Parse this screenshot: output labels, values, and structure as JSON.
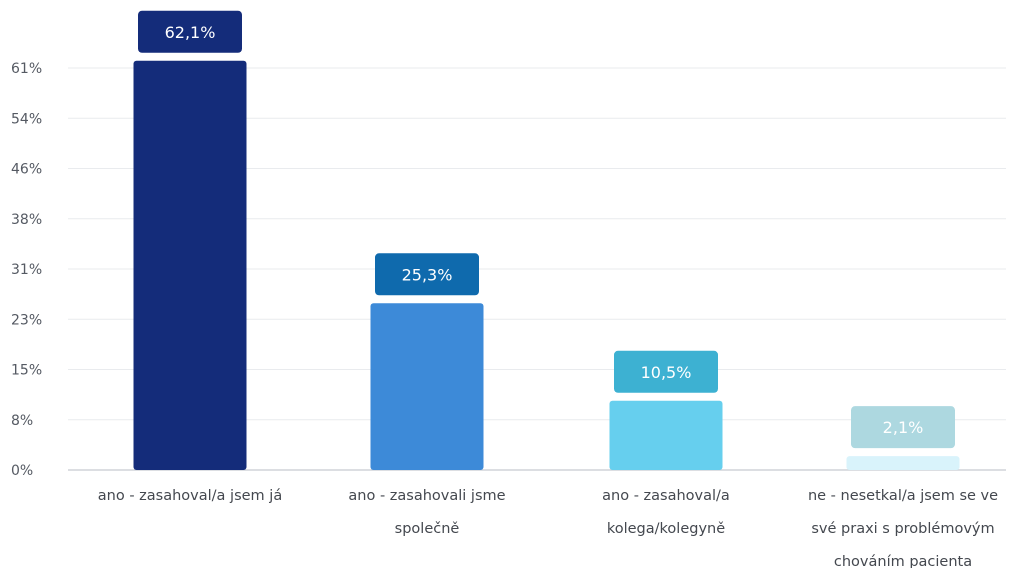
{
  "chart_data": {
    "type": "bar",
    "categories": [
      [
        "ano - zasahoval/a jsem já"
      ],
      [
        "ano - zasahovali jsme",
        "společně"
      ],
      [
        "ano - zasahoval/a",
        "kolega/kolegyně"
      ],
      [
        "ne - nesetkal/a jsem se ve",
        "své praxi s problémovým",
        "chováním pacienta"
      ]
    ],
    "values": [
      62.1,
      25.3,
      10.5,
      2.1
    ],
    "data_labels": [
      "62,1%",
      "25,3%",
      "10,5%",
      "2,1%"
    ],
    "y_ticks": [
      "0%",
      "8%",
      "15%",
      "23%",
      "31%",
      "38%",
      "46%",
      "54%",
      "61%"
    ],
    "ylim": [
      0,
      61
    ],
    "grid": true,
    "legend": "none",
    "bar_colors": [
      "#142c7a",
      "#3d8ad8",
      "#66cfee",
      "#d9f3fb"
    ],
    "label_colors": [
      "#142c7a",
      "#0f6aad",
      "#3db1d2",
      "#add8e0"
    ],
    "axis_color": "#d0d3d8",
    "grid_color": "#e9ebee"
  }
}
